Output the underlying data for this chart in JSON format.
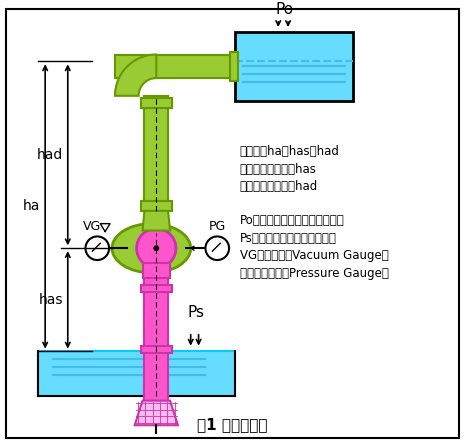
{
  "title": "図1 揚程説明図",
  "text_lines": [
    "実揚程＝ha＝has＋had",
    "実吸い上げ揚程＝has",
    "実押し上げ揚程＝had"
  ],
  "text_lines2": [
    "Po＝吐出水面に加わる大気圧力",
    "Ps＝吸水面に加わる大気圧力",
    "VG＝真空計（Vacuum Gauge）",
    "ＰＧ＝圧力計（Pressure Gauge）"
  ],
  "colors": {
    "pipe_green": "#99cc33",
    "pipe_green_dark": "#669900",
    "pump_pink": "#ff55cc",
    "pump_pink_dark": "#cc33aa",
    "water_cyan": "#00ccff",
    "water_fill": "#66ddff",
    "background": "#ffffff",
    "text": "#000000"
  },
  "labels": {
    "Po": "Po",
    "Ps": "Ps",
    "VG": "VG",
    "PG": "PG",
    "ha": "ha",
    "had": "had",
    "has": "has"
  }
}
